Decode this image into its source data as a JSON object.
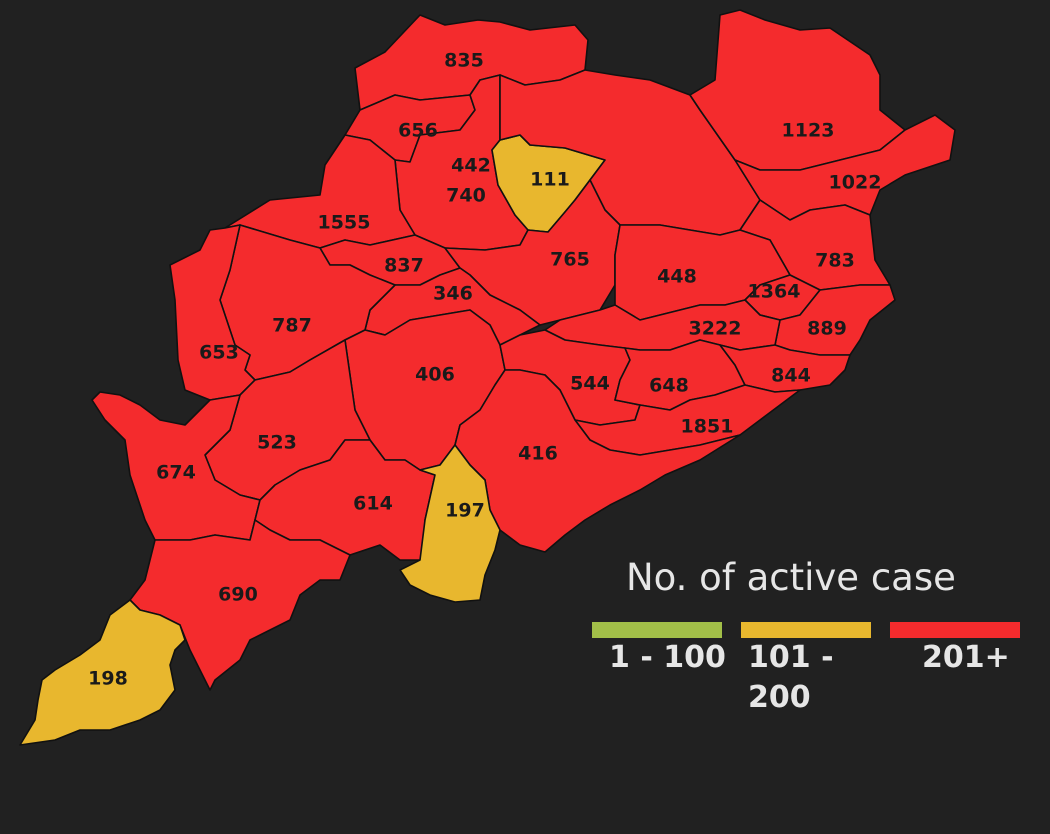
{
  "colors": {
    "background": "#212121",
    "low": "#a2bf48",
    "mid": "#e8b72e",
    "high": "#f42b2d",
    "border": "#111111"
  },
  "legend": {
    "title": "No. of active case",
    "items": [
      {
        "label": "1 - 100",
        "color": "#a2bf48"
      },
      {
        "label": "101 -\n200",
        "color": "#e8b72e"
      },
      {
        "label": "201+",
        "color": "#f42b2d"
      }
    ]
  },
  "districts": [
    {
      "value": "835",
      "band": "high"
    },
    {
      "value": "656",
      "band": "high"
    },
    {
      "value": "111",
      "band": "mid"
    },
    {
      "value": "1123",
      "band": "high"
    },
    {
      "value": "442",
      "band": "high"
    },
    {
      "value": "1022",
      "band": "high"
    },
    {
      "value": "740",
      "band": "high"
    },
    {
      "value": "1555",
      "band": "high"
    },
    {
      "value": "783",
      "band": "high"
    },
    {
      "value": "837",
      "band": "high"
    },
    {
      "value": "765",
      "band": "high"
    },
    {
      "value": "448",
      "band": "high"
    },
    {
      "value": "1364",
      "band": "high"
    },
    {
      "value": "346",
      "band": "high"
    },
    {
      "value": "787",
      "band": "high"
    },
    {
      "value": "3222",
      "band": "high"
    },
    {
      "value": "889",
      "band": "high"
    },
    {
      "value": "653",
      "band": "high"
    },
    {
      "value": "406",
      "band": "high"
    },
    {
      "value": "544",
      "band": "high"
    },
    {
      "value": "648",
      "band": "high"
    },
    {
      "value": "844",
      "band": "high"
    },
    {
      "value": "1851",
      "band": "high"
    },
    {
      "value": "523",
      "band": "high"
    },
    {
      "value": "416",
      "band": "high"
    },
    {
      "value": "674",
      "band": "high"
    },
    {
      "value": "614",
      "band": "high"
    },
    {
      "value": "197",
      "band": "mid"
    },
    {
      "value": "690",
      "band": "high"
    },
    {
      "value": "198",
      "band": "mid"
    }
  ]
}
